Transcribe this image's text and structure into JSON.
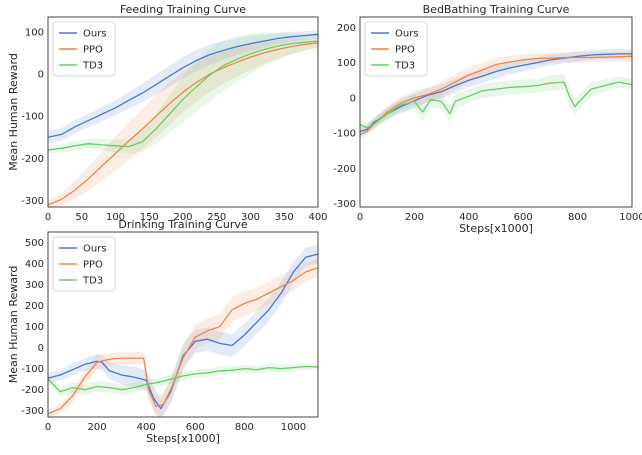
{
  "chart_data": [
    {
      "type": "line",
      "title": "Feeding Training Curve",
      "xlabel": "",
      "ylabel": "Mean Human Reward",
      "xlim": [
        0,
        400
      ],
      "ylim": [
        -315,
        135
      ],
      "xticks": [
        0,
        50,
        100,
        150,
        200,
        250,
        300,
        350,
        400
      ],
      "yticks": [
        -300,
        -200,
        -100,
        0,
        100
      ],
      "legend": "top-left",
      "series": [
        {
          "name": "Ours",
          "color": "#4878cf",
          "x": [
            0,
            20,
            40,
            60,
            80,
            100,
            120,
            140,
            160,
            180,
            200,
            220,
            240,
            260,
            280,
            300,
            320,
            340,
            360,
            380,
            400
          ],
          "y": [
            -150,
            -143,
            -125,
            -110,
            -95,
            -80,
            -62,
            -45,
            -25,
            -5,
            15,
            32,
            46,
            56,
            65,
            72,
            78,
            84,
            88,
            91,
            94
          ],
          "band": [
            15,
            15,
            16,
            16,
            17,
            18,
            20,
            22,
            24,
            25,
            25,
            25,
            24,
            22,
            20,
            18,
            16,
            14,
            12,
            10,
            10
          ]
        },
        {
          "name": "PPO",
          "color": "#ee854a",
          "x": [
            0,
            20,
            40,
            60,
            80,
            100,
            120,
            140,
            160,
            180,
            200,
            220,
            240,
            260,
            280,
            300,
            320,
            340,
            360,
            380,
            400
          ],
          "y": [
            -310,
            -297,
            -275,
            -248,
            -218,
            -188,
            -158,
            -130,
            -100,
            -70,
            -43,
            -20,
            0,
            15,
            28,
            40,
            50,
            58,
            65,
            70,
            74
          ],
          "band": [
            12,
            16,
            22,
            28,
            34,
            40,
            45,
            48,
            50,
            50,
            48,
            45,
            42,
            38,
            34,
            30,
            26,
            22,
            18,
            14,
            12
          ]
        },
        {
          "name": "TD3",
          "color": "#6acc64",
          "x": [
            0,
            20,
            40,
            60,
            80,
            100,
            120,
            140,
            160,
            180,
            200,
            220,
            240,
            260,
            280,
            300,
            320,
            340,
            360,
            380,
            400
          ],
          "y": [
            -180,
            -176,
            -170,
            -165,
            -168,
            -170,
            -172,
            -160,
            -130,
            -95,
            -60,
            -30,
            -2,
            20,
            35,
            48,
            58,
            66,
            72,
            75,
            78
          ],
          "band": [
            8,
            10,
            12,
            12,
            14,
            15,
            18,
            25,
            35,
            45,
            55,
            60,
            62,
            60,
            55,
            48,
            40,
            32,
            25,
            20,
            16
          ]
        }
      ]
    },
    {
      "type": "line",
      "title": "BedBathing Training Curve",
      "xlabel": "Steps[x1000]",
      "ylabel": "",
      "xlim": [
        0,
        1000
      ],
      "ylim": [
        -310,
        230
      ],
      "xticks": [
        0,
        200,
        400,
        600,
        800,
        1000
      ],
      "yticks": [
        -300,
        -200,
        -100,
        0,
        100,
        200
      ],
      "legend": "top-left",
      "series": [
        {
          "name": "Ours",
          "color": "#4878cf",
          "x": [
            0,
            25,
            50,
            100,
            150,
            200,
            250,
            300,
            350,
            400,
            450,
            500,
            550,
            600,
            650,
            700,
            750,
            800,
            850,
            900,
            950,
            1000
          ],
          "y": [
            -95,
            -90,
            -70,
            -45,
            -25,
            -8,
            8,
            18,
            35,
            50,
            62,
            75,
            85,
            93,
            100,
            108,
            113,
            118,
            122,
            124,
            125,
            125
          ],
          "band": [
            12,
            12,
            14,
            16,
            18,
            20,
            20,
            20,
            20,
            20,
            20,
            20,
            18,
            18,
            16,
            16,
            15,
            15,
            14,
            14,
            14,
            14
          ]
        },
        {
          "name": "PPO",
          "color": "#ee854a",
          "x": [
            0,
            25,
            50,
            100,
            150,
            200,
            250,
            300,
            350,
            400,
            450,
            500,
            550,
            600,
            650,
            700,
            750,
            800,
            850,
            900,
            950,
            1000
          ],
          "y": [
            -105,
            -95,
            -75,
            -40,
            -15,
            0,
            10,
            25,
            45,
            65,
            80,
            95,
            102,
            108,
            112,
            113,
            115,
            115,
            115,
            116,
            117,
            118
          ],
          "band": [
            12,
            12,
            14,
            16,
            18,
            20,
            20,
            22,
            22,
            22,
            20,
            20,
            18,
            16,
            15,
            15,
            14,
            14,
            14,
            14,
            14,
            14
          ]
        },
        {
          "name": "TD3",
          "color": "#6acc64",
          "x": [
            0,
            25,
            50,
            100,
            150,
            200,
            230,
            260,
            300,
            330,
            350,
            400,
            450,
            500,
            550,
            600,
            650,
            700,
            750,
            770,
            790,
            800,
            850,
            900,
            950,
            1000
          ],
          "y": [
            -75,
            -85,
            -75,
            -45,
            -20,
            -10,
            -40,
            -5,
            -10,
            -45,
            -10,
            5,
            20,
            25,
            30,
            32,
            35,
            42,
            45,
            5,
            -25,
            -15,
            25,
            35,
            45,
            38
          ],
          "band": [
            14,
            14,
            16,
            18,
            20,
            22,
            25,
            22,
            22,
            25,
            22,
            20,
            20,
            20,
            20,
            20,
            20,
            22,
            22,
            25,
            25,
            22,
            20,
            18,
            16,
            16
          ]
        }
      ]
    },
    {
      "type": "line",
      "title": "Drinking Training Curve",
      "xlabel": "Steps[x1000]",
      "ylabel": "Mean Human Reward",
      "xlim": [
        0,
        1100
      ],
      "ylim": [
        -330,
        550
      ],
      "xticks": [
        0,
        200,
        400,
        600,
        800,
        1000
      ],
      "yticks": [
        -300,
        -200,
        -100,
        0,
        100,
        200,
        300,
        400,
        500
      ],
      "legend": "top-left",
      "series": [
        {
          "name": "Ours",
          "color": "#4878cf",
          "x": [
            0,
            50,
            100,
            150,
            200,
            220,
            250,
            300,
            350,
            400,
            430,
            460,
            500,
            550,
            600,
            650,
            700,
            750,
            800,
            850,
            900,
            950,
            1000,
            1050,
            1100
          ],
          "y": [
            -145,
            -130,
            -105,
            -80,
            -65,
            -70,
            -110,
            -130,
            -140,
            -155,
            -240,
            -290,
            -210,
            -40,
            30,
            40,
            20,
            10,
            60,
            120,
            180,
            260,
            360,
            430,
            445
          ],
          "band": [
            25,
            25,
            28,
            30,
            35,
            35,
            40,
            45,
            50,
            50,
            55,
            45,
            55,
            60,
            55,
            55,
            55,
            55,
            55,
            55,
            55,
            55,
            50,
            45,
            45
          ]
        },
        {
          "name": "PPO",
          "color": "#ee854a",
          "x": [
            0,
            50,
            100,
            150,
            200,
            250,
            300,
            350,
            390,
            410,
            440,
            470,
            500,
            550,
            600,
            650,
            700,
            750,
            800,
            850,
            900,
            950,
            1000,
            1050,
            1100
          ],
          "y": [
            -315,
            -290,
            -230,
            -140,
            -70,
            -55,
            -50,
            -50,
            -50,
            -200,
            -280,
            -270,
            -200,
            -50,
            50,
            80,
            100,
            180,
            210,
            230,
            260,
            290,
            320,
            360,
            380
          ],
          "band": [
            20,
            25,
            30,
            35,
            35,
            30,
            30,
            30,
            30,
            45,
            50,
            55,
            60,
            60,
            60,
            60,
            60,
            60,
            60,
            55,
            55,
            55,
            50,
            45,
            45
          ]
        },
        {
          "name": "TD3",
          "color": "#6acc64",
          "x": [
            0,
            50,
            100,
            150,
            200,
            250,
            300,
            350,
            400,
            450,
            500,
            550,
            600,
            650,
            700,
            750,
            800,
            850,
            900,
            950,
            1000,
            1050,
            1100
          ],
          "y": [
            -150,
            -210,
            -190,
            -200,
            -185,
            -190,
            -200,
            -190,
            -175,
            -165,
            -150,
            -135,
            -125,
            -120,
            -110,
            -108,
            -100,
            -105,
            -95,
            -100,
            -95,
            -90,
            -92
          ],
          "band": [
            20,
            25,
            25,
            25,
            25,
            25,
            25,
            25,
            22,
            22,
            22,
            22,
            20,
            20,
            20,
            18,
            18,
            18,
            18,
            18,
            16,
            16,
            16
          ]
        }
      ]
    }
  ]
}
